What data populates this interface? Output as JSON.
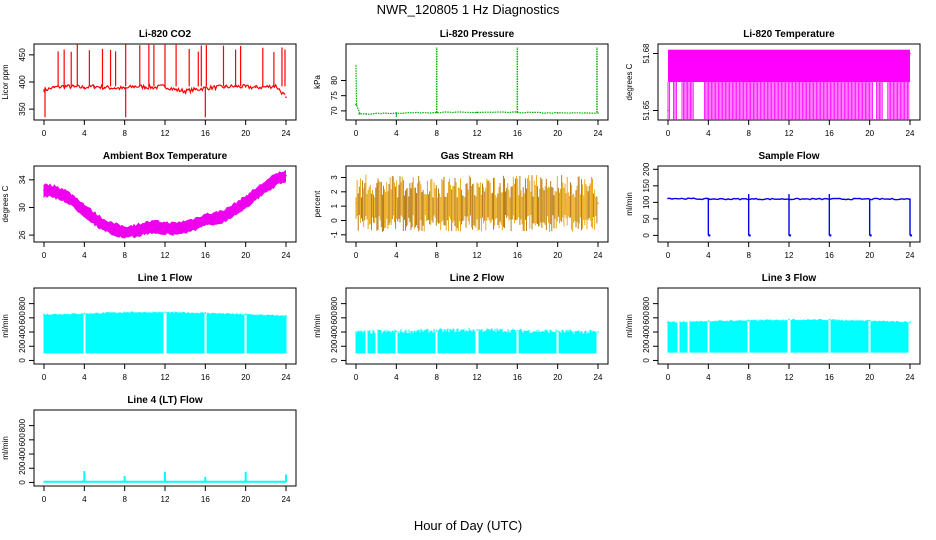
{
  "title": "NWR_120805  1 Hz Diagnostics",
  "xlabel": "Hour of Day (UTC)",
  "chart_data": [
    {
      "type": "line",
      "title": "Li-820 CO2",
      "ylabel": "Licor ppm",
      "color": "#ff0000",
      "xlim": [
        0,
        24
      ],
      "xticks": [
        0,
        4,
        8,
        12,
        16,
        20,
        24
      ],
      "ylim": [
        330,
        470
      ],
      "yticks": [
        350,
        400,
        450
      ],
      "series": [
        {
          "x": [
            0,
            1,
            2,
            3,
            4,
            5,
            6,
            7,
            8,
            9,
            10,
            11,
            12,
            13,
            14,
            15,
            16,
            17,
            18,
            19,
            20,
            21,
            22,
            23,
            24
          ],
          "values": [
            385,
            390,
            392,
            391,
            390,
            392,
            390,
            389,
            388,
            392,
            391,
            390,
            392,
            386,
            383,
            386,
            389,
            390,
            391,
            392,
            391,
            390,
            391,
            393,
            372
          ]
        }
      ]
    },
    {
      "type": "line",
      "title": "Li-820 Pressure",
      "ylabel": "kPa",
      "color": "#00aa00",
      "xlim": [
        0,
        24
      ],
      "xticks": [
        0,
        4,
        8,
        12,
        16,
        20,
        24
      ],
      "ylim": [
        67,
        92
      ],
      "yticks": [
        70,
        75,
        80
      ],
      "series": [
        {
          "x": [
            0,
            0.3,
            1,
            4,
            8,
            12,
            16,
            20,
            24
          ],
          "values": [
            72,
            69,
            69,
            69.3,
            69.5,
            69.5,
            69.5,
            69.3,
            69.3
          ]
        }
      ]
    },
    {
      "type": "area",
      "title": "Li-820 Temperature",
      "ylabel": "degrees C",
      "color": "#ff00ff",
      "xlim": [
        0,
        24
      ],
      "xticks": [
        0,
        4,
        8,
        12,
        16,
        20,
        24
      ],
      "ylim": [
        51.645,
        51.685
      ],
      "yticks": [
        51.65,
        51.68
      ],
      "series": [
        {
          "x": [
            0,
            24
          ],
          "values": [
            51.65,
            51.68
          ]
        }
      ]
    },
    {
      "type": "line",
      "title": "Ambient Box Temperature",
      "ylabel": "degrees C",
      "color": "#ee00ee",
      "xlim": [
        0,
        24
      ],
      "xticks": [
        0,
        4,
        8,
        12,
        16,
        20,
        24
      ],
      "ylim": [
        25,
        36
      ],
      "yticks": [
        26,
        30,
        34
      ],
      "series": [
        {
          "x": [
            0,
            1,
            2,
            3,
            4,
            5,
            6,
            7,
            8,
            9,
            10,
            11,
            12,
            13,
            14,
            15,
            16,
            17,
            18,
            19,
            20,
            21,
            22,
            23,
            24
          ],
          "values": [
            32.5,
            32.3,
            31.8,
            30.8,
            29.6,
            28.4,
            27.4,
            26.8,
            26.4,
            26.6,
            27,
            27.2,
            27,
            26.9,
            27.2,
            27.6,
            28.2,
            28.4,
            28.9,
            29.8,
            30.8,
            31.9,
            33,
            34,
            34.6
          ]
        }
      ]
    },
    {
      "type": "line",
      "title": "Gas Stream RH",
      "ylabel": "percent",
      "color": "#e8a000",
      "xlim": [
        0,
        24
      ],
      "xticks": [
        0,
        4,
        8,
        12,
        16,
        20,
        24
      ],
      "ylim": [
        -1.5,
        3.8
      ],
      "yticks": [
        -1,
        0,
        1,
        2,
        3
      ],
      "series": [
        {
          "x": [
            0,
            24
          ],
          "values": [
            1.2,
            1.2
          ]
        }
      ]
    },
    {
      "type": "line",
      "title": "Sample Flow",
      "ylabel": "ml/min",
      "color": "#0000ee",
      "xlim": [
        0,
        24
      ],
      "xticks": [
        0,
        4,
        8,
        12,
        16,
        20,
        24
      ],
      "ylim": [
        -20,
        210
      ],
      "yticks": [
        0,
        50,
        100,
        150,
        200
      ],
      "series": [
        {
          "x": [
            0,
            4,
            8,
            12,
            16,
            20,
            24
          ],
          "values": [
            112,
            110,
            110,
            110,
            110,
            110,
            110
          ]
        }
      ]
    },
    {
      "type": "area",
      "title": "Line 1 Flow",
      "ylabel": "ml/min",
      "color": "#00ffff",
      "xlim": [
        0,
        24
      ],
      "xticks": [
        0,
        4,
        8,
        12,
        16,
        20,
        24
      ],
      "ylim": [
        -50,
        1020
      ],
      "yticks": [
        0,
        200,
        400,
        600,
        800
      ],
      "series": [
        {
          "x": [
            0,
            4,
            8,
            12,
            16,
            20,
            24
          ],
          "values": [
            650,
            660,
            680,
            680,
            670,
            650,
            630
          ]
        }
      ]
    },
    {
      "type": "area",
      "title": "Line 2 Flow",
      "ylabel": "ml/min",
      "color": "#00ffff",
      "xlim": [
        0,
        24
      ],
      "xticks": [
        0,
        4,
        8,
        12,
        16,
        20,
        24
      ],
      "ylim": [
        -50,
        1020
      ],
      "yticks": [
        0,
        200,
        400,
        600,
        800
      ],
      "series": [
        {
          "x": [
            0,
            4,
            8,
            12,
            16,
            20,
            24
          ],
          "values": [
            400,
            410,
            420,
            430,
            420,
            410,
            400
          ]
        }
      ]
    },
    {
      "type": "area",
      "title": "Line 3 Flow",
      "ylabel": "ml/min",
      "color": "#00ffff",
      "xlim": [
        0,
        24
      ],
      "xticks": [
        0,
        4,
        8,
        12,
        16,
        20,
        24
      ],
      "ylim": [
        -50,
        1020
      ],
      "yticks": [
        0,
        200,
        400,
        600,
        800
      ],
      "series": [
        {
          "x": [
            0,
            4,
            8,
            12,
            16,
            20,
            24
          ],
          "values": [
            540,
            555,
            565,
            575,
            575,
            560,
            540
          ]
        }
      ]
    },
    {
      "type": "line",
      "title": "Line 4 (LT) Flow",
      "ylabel": "ml/min",
      "color": "#00ffff",
      "xlim": [
        0,
        24
      ],
      "xticks": [
        0,
        4,
        8,
        12,
        16,
        20,
        24
      ],
      "ylim": [
        -50,
        1020
      ],
      "yticks": [
        0,
        200,
        400,
        600,
        800
      ],
      "series": [
        {
          "x": [
            0,
            4,
            8,
            12,
            16,
            20,
            24
          ],
          "values": [
            8,
            10,
            10,
            10,
            10,
            10,
            10
          ]
        }
      ]
    }
  ]
}
